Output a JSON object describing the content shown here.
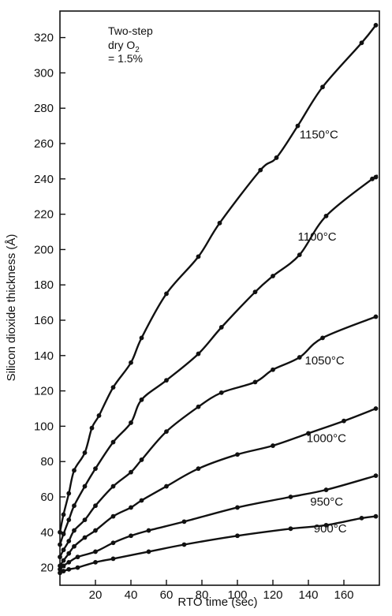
{
  "chart_data": {
    "type": "line",
    "xlabel": "RTO time (sec)",
    "ylabel": "Silicon dioxide thickness (Å)",
    "xlim": [
      0,
      180
    ],
    "ylim": [
      10,
      335
    ],
    "xticks": [
      20,
      40,
      60,
      80,
      100,
      120,
      140,
      160
    ],
    "yticks": [
      20,
      40,
      60,
      80,
      100,
      120,
      140,
      160,
      180,
      200,
      220,
      240,
      260,
      280,
      300,
      320
    ],
    "annotation": {
      "line1": "Two-step",
      "line2_prefix": "dry O",
      "line2_subscript": "2",
      "line3": "= 1.5%"
    },
    "series": [
      {
        "name": "1150°C",
        "points": [
          [
            0,
            40
          ],
          [
            2,
            50
          ],
          [
            5,
            62
          ],
          [
            8,
            75
          ],
          [
            14,
            85
          ],
          [
            18,
            99
          ],
          [
            22,
            106
          ],
          [
            30,
            122
          ],
          [
            40,
            136
          ],
          [
            46,
            150
          ],
          [
            60,
            175
          ],
          [
            78,
            196
          ],
          [
            90,
            215
          ],
          [
            113,
            245
          ],
          [
            122,
            252
          ],
          [
            134,
            270
          ],
          [
            148,
            292
          ],
          [
            170,
            317
          ],
          [
            178,
            327
          ]
        ]
      },
      {
        "name": "1100°C",
        "points": [
          [
            0,
            33
          ],
          [
            2,
            39
          ],
          [
            5,
            47
          ],
          [
            8,
            55
          ],
          [
            14,
            66
          ],
          [
            20,
            76
          ],
          [
            30,
            91
          ],
          [
            40,
            102
          ],
          [
            46,
            115
          ],
          [
            60,
            126
          ],
          [
            78,
            141
          ],
          [
            91,
            156
          ],
          [
            110,
            176
          ],
          [
            120,
            185
          ],
          [
            135,
            197
          ],
          [
            150,
            219
          ],
          [
            176,
            240
          ],
          [
            178,
            241
          ]
        ]
      },
      {
        "name": "1050°C",
        "points": [
          [
            0,
            26
          ],
          [
            2,
            30
          ],
          [
            5,
            35
          ],
          [
            8,
            41
          ],
          [
            14,
            47
          ],
          [
            20,
            55
          ],
          [
            30,
            66
          ],
          [
            40,
            74
          ],
          [
            46,
            81
          ],
          [
            60,
            97
          ],
          [
            78,
            111
          ],
          [
            91,
            119
          ],
          [
            110,
            125
          ],
          [
            120,
            132
          ],
          [
            135,
            139
          ],
          [
            148,
            150
          ],
          [
            178,
            162
          ]
        ]
      },
      {
        "name": "1000°C",
        "points": [
          [
            0,
            21
          ],
          [
            2,
            24
          ],
          [
            5,
            28
          ],
          [
            8,
            32
          ],
          [
            14,
            37
          ],
          [
            20,
            41
          ],
          [
            30,
            49
          ],
          [
            40,
            54
          ],
          [
            46,
            58
          ],
          [
            60,
            66
          ],
          [
            78,
            76
          ],
          [
            100,
            84
          ],
          [
            120,
            89
          ],
          [
            140,
            96
          ],
          [
            160,
            103
          ],
          [
            178,
            110
          ]
        ]
      },
      {
        "name": "950°C",
        "points": [
          [
            0,
            19
          ],
          [
            2,
            21
          ],
          [
            5,
            23
          ],
          [
            10,
            26
          ],
          [
            20,
            29
          ],
          [
            30,
            34
          ],
          [
            40,
            38
          ],
          [
            50,
            41
          ],
          [
            70,
            46
          ],
          [
            100,
            54
          ],
          [
            130,
            60
          ],
          [
            150,
            64
          ],
          [
            178,
            72
          ]
        ]
      },
      {
        "name": "900°C",
        "points": [
          [
            0,
            17
          ],
          [
            2,
            18
          ],
          [
            5,
            19
          ],
          [
            10,
            20
          ],
          [
            20,
            23
          ],
          [
            30,
            25
          ],
          [
            50,
            29
          ],
          [
            70,
            33
          ],
          [
            100,
            38
          ],
          [
            130,
            42
          ],
          [
            150,
            44
          ],
          [
            170,
            48
          ],
          [
            178,
            49
          ]
        ]
      }
    ]
  }
}
